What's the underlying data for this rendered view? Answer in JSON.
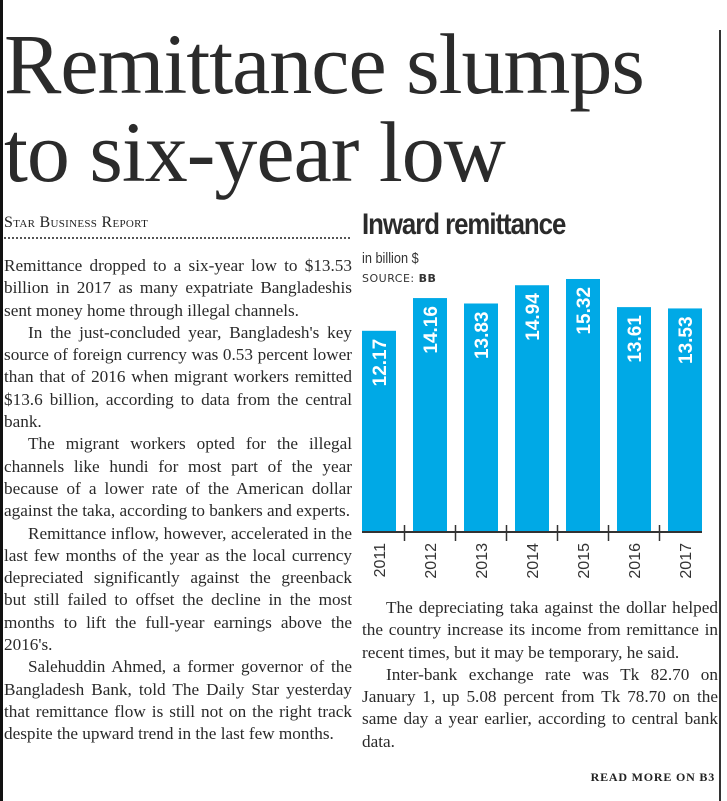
{
  "headline": [
    "Remittance slumps",
    "to six-year low"
  ],
  "byline": "Star Business Report",
  "left_column": [
    "Remittance dropped to a six-year low to $13.53 billion in 2017 as many expatriate Bangladeshis sent money home through illegal channels.",
    "In the just-concluded year, Bangladesh's key source of foreign currency was 0.53 percent lower than that of 2016 when migrant workers remitted $13.6 billion, according to data from the central bank.",
    "The migrant workers opted for the illegal channels like hundi for most part of the year because of a lower rate of the American dollar against the taka, according to bankers and experts.",
    "Remittance inflow, however, accelerated in the last few months of the year as the local currency depreciated significantly against the greenback but still failed to offset the decline in the most months to lift the full-year earnings above the 2016's.",
    "Salehuddin Ahmed, a former governor of the Bangladesh Bank, told The Daily Star yesterday that remittance flow is still not on the right track despite the upward trend in the last few months."
  ],
  "right_column": [
    "The depreciating taka against the dollar helped the country increase its income from remittance in recent times, but it may be temporary, he said.",
    "Inter-bank exchange rate was Tk 82.70 on January 1, up 5.08 percent from Tk 78.70 on the same day a year earlier, according to central bank data."
  ],
  "read_more": "READ MORE ON B3",
  "chart_data": {
    "type": "bar",
    "title": "Inward remittance",
    "subtitle": "in billion $",
    "source_label": "SOURCE:",
    "source": "BB",
    "categories": [
      "2011",
      "2012",
      "2013",
      "2014",
      "2015",
      "2016",
      "2017"
    ],
    "values": [
      12.17,
      14.16,
      13.83,
      14.94,
      15.32,
      13.61,
      13.53
    ],
    "value_labels": [
      "12.17",
      "14.16",
      "13.83",
      "14.94",
      "15.32",
      "13.61",
      "13.53"
    ],
    "ylim": [
      0,
      15.32
    ],
    "bar_color": "#00a9e6",
    "grid": false
  }
}
